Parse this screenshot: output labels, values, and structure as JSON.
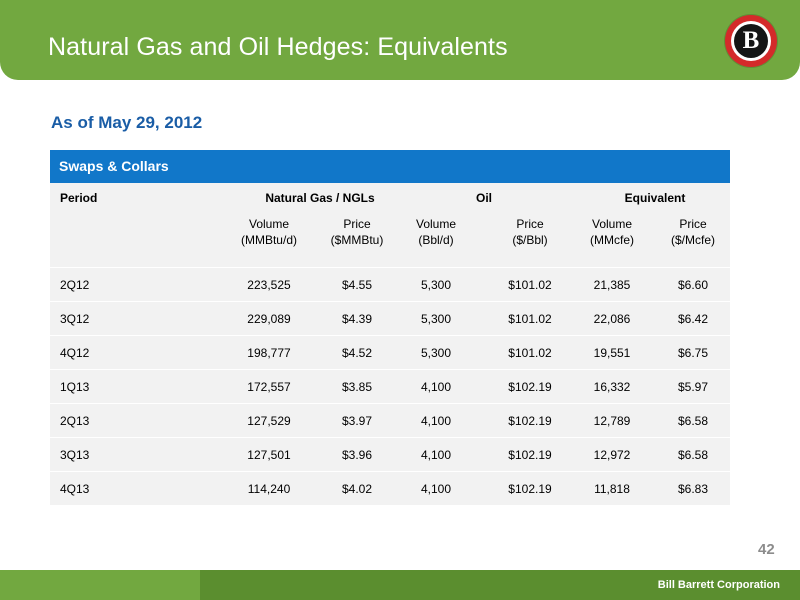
{
  "header": {
    "title": "Natural Gas and Oil Hedges: Equivalents",
    "logo_letter": "B"
  },
  "subtitle": "As of May 29, 2012",
  "table": {
    "caption": "Swaps & Collars",
    "groups": {
      "period": "Period",
      "natural_gas": "Natural Gas / NGLs",
      "oil": "Oil",
      "equivalent": "Equivalent"
    },
    "columns": [
      {
        "line1": "Volume",
        "line2": "(MMBtu/d)"
      },
      {
        "line1": "Price",
        "line2": "($MMBtu)"
      },
      {
        "line1": "Volume",
        "line2": "(Bbl/d)"
      },
      {
        "line1": "Price",
        "line2": "($/Bbl)"
      },
      {
        "line1": "Volume",
        "line2": "(MMcfe)"
      },
      {
        "line1": "Price",
        "line2": "($/Mcfe)"
      }
    ],
    "rows": [
      [
        "2Q12",
        "223,525",
        "$4.55",
        "5,300",
        "$101.02",
        "21,385",
        "$6.60"
      ],
      [
        "3Q12",
        "229,089",
        "$4.39",
        "5,300",
        "$101.02",
        "22,086",
        "$6.42"
      ],
      [
        "4Q12",
        "198,777",
        "$4.52",
        "5,300",
        "$101.02",
        "19,551",
        "$6.75"
      ],
      [
        "1Q13",
        "172,557",
        "$3.85",
        "4,100",
        "$102.19",
        "16,332",
        "$5.97"
      ],
      [
        "2Q13",
        "127,529",
        "$3.97",
        "4,100",
        "$102.19",
        "12,789",
        "$6.58"
      ],
      [
        "3Q13",
        "127,501",
        "$3.96",
        "4,100",
        "$102.19",
        "12,972",
        "$6.58"
      ],
      [
        "4Q13",
        "114,240",
        "$4.02",
        "4,100",
        "$102.19",
        "11,818",
        "$6.83"
      ]
    ]
  },
  "page_number": "42",
  "footer": {
    "company": "Bill Barrett Corporation"
  },
  "colors": {
    "title_bar": "#72a840",
    "footer_dark": "#5b8e2f",
    "table_header": "#1177c9",
    "subtitle": "#1a5da6",
    "logo_red": "#d42a2a"
  }
}
